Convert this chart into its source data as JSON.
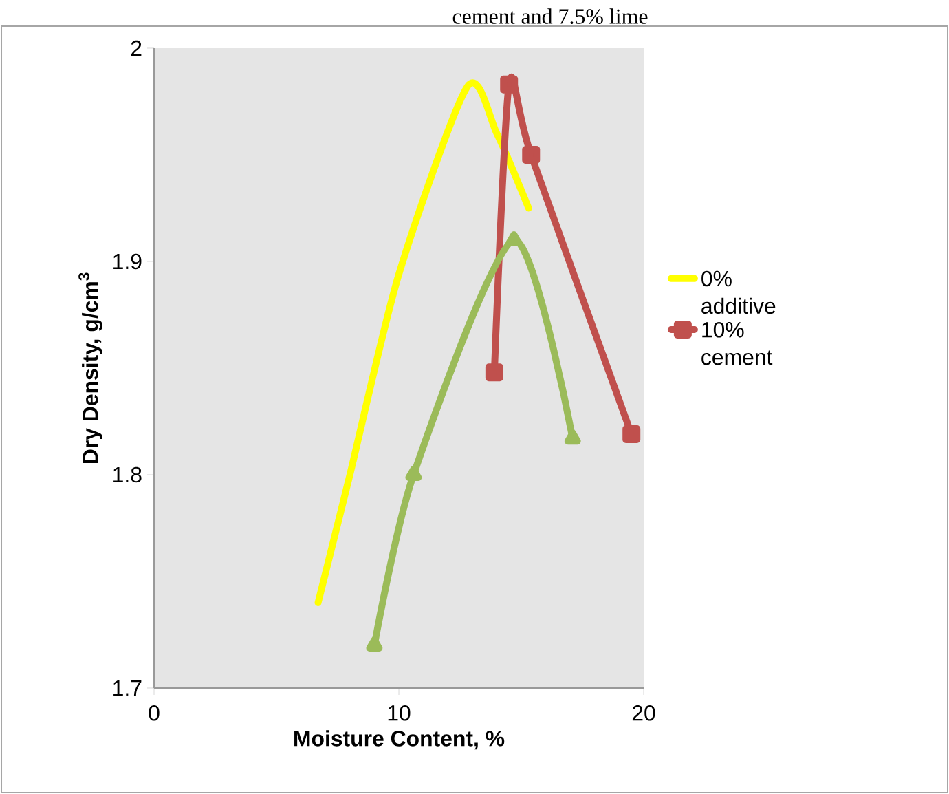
{
  "chart_data": {
    "type": "line",
    "title": "cement and 7.5% lime",
    "xlabel": "Moisture Content, %",
    "ylabel": "Dry Density, g/cm$^{3}$",
    "xlim": [
      0,
      20
    ],
    "xticks": [
      0,
      10,
      20
    ],
    "ylim": [
      1.7,
      2
    ],
    "yticks": [
      1.7,
      1.8,
      1.9,
      2
    ],
    "grid": false,
    "legend": "right",
    "series": [
      {
        "name": "0% additive",
        "color": "#ffff00",
        "marker": "none",
        "x": [
          6.7,
          8,
          10,
          12.8,
          14,
          15.3
        ],
        "values": [
          1.74,
          1.8,
          1.894,
          1.982,
          1.96,
          1.925
        ]
      },
      {
        "name": "10% cement",
        "color": "#c0504d",
        "marker": "square",
        "x": [
          13.9,
          14.5,
          15.4,
          19.5
        ],
        "values": [
          1.848,
          1.983,
          1.95,
          1.819
        ]
      },
      {
        "color": "#9bbb59",
        "marker": "triangle",
        "x": [
          9.0,
          10.6,
          14.7,
          17.1
        ],
        "values": [
          1.72,
          1.8,
          1.91,
          1.817
        ]
      }
    ]
  }
}
